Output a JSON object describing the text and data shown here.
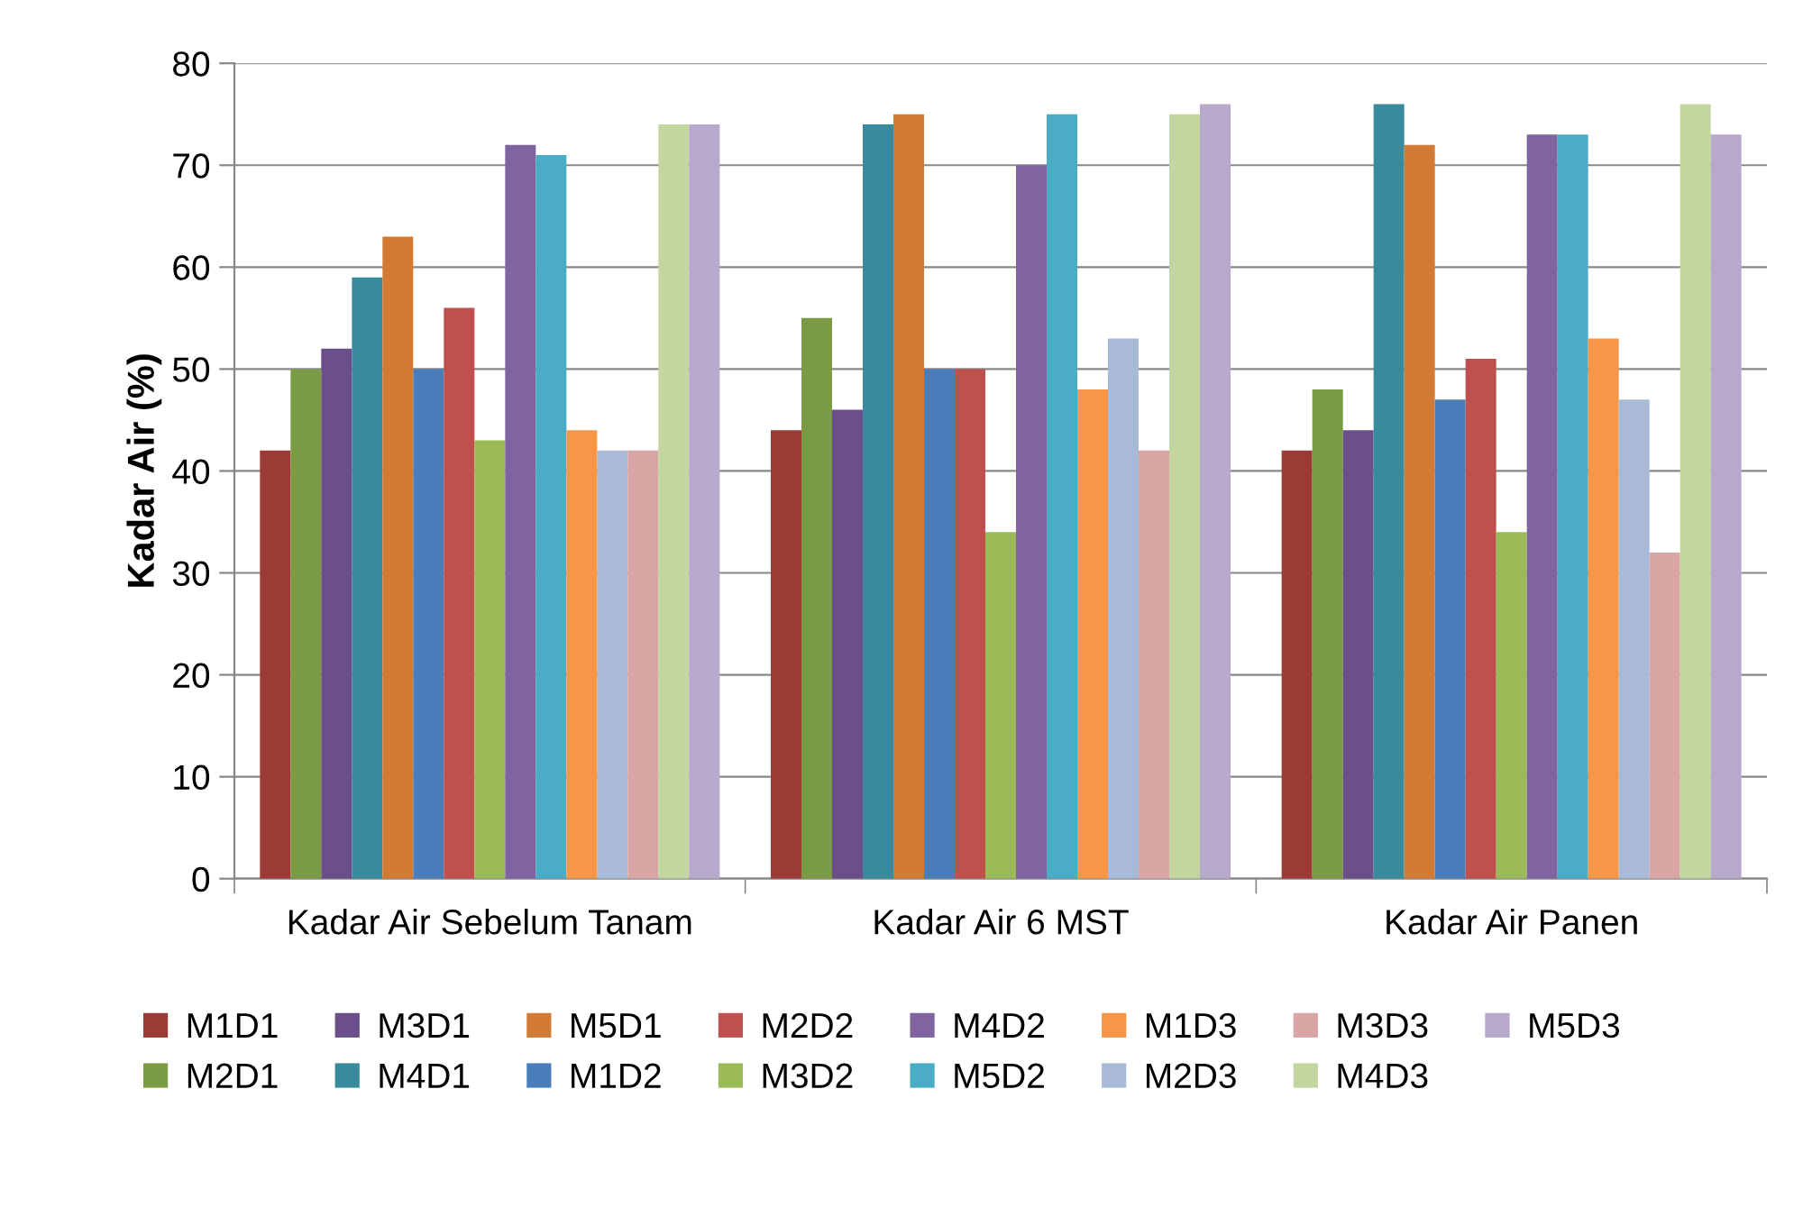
{
  "chart_data": {
    "type": "bar",
    "ylabel": "Kadar Air (%)",
    "categories": [
      "Kadar Air Sebelum Tanam",
      "Kadar Air 6 MST",
      "Kadar Air Panen"
    ],
    "ylim": [
      0,
      80
    ],
    "yticks": [
      0,
      10,
      20,
      30,
      40,
      50,
      60,
      70,
      80
    ],
    "grid": "y",
    "legend": "bottom",
    "series": [
      {
        "name": "M1D1",
        "color": "#9b3b36",
        "values": [
          42,
          44,
          42
        ]
      },
      {
        "name": "M2D1",
        "color": "#7b9a44",
        "values": [
          50,
          55,
          48
        ]
      },
      {
        "name": "M3D1",
        "color": "#6b4f8a",
        "values": [
          52,
          46,
          44
        ]
      },
      {
        "name": "M4D1",
        "color": "#3a8a9e",
        "values": [
          59,
          74,
          76
        ]
      },
      {
        "name": "M5D1",
        "color": "#d27b35",
        "values": [
          63,
          75,
          72
        ]
      },
      {
        "name": "M1D2",
        "color": "#4a7ebb",
        "values": [
          50,
          50,
          47
        ]
      },
      {
        "name": "M2D2",
        "color": "#c0504d",
        "values": [
          56,
          50,
          51
        ]
      },
      {
        "name": "M3D2",
        "color": "#9bbb59",
        "values": [
          43,
          34,
          34
        ]
      },
      {
        "name": "M4D2",
        "color": "#8064a2",
        "values": [
          72,
          70,
          73
        ]
      },
      {
        "name": "M5D2",
        "color": "#4bacc6",
        "values": [
          71,
          75,
          73
        ]
      },
      {
        "name": "M1D3",
        "color": "#f79646",
        "values": [
          44,
          48,
          53
        ]
      },
      {
        "name": "M2D3",
        "color": "#a9b9d8",
        "values": [
          42,
          53,
          47
        ]
      },
      {
        "name": "M3D3",
        "color": "#d9a5a5",
        "values": [
          42,
          42,
          32
        ]
      },
      {
        "name": "M4D3",
        "color": "#c4d6a0",
        "values": [
          74,
          75,
          76
        ]
      },
      {
        "name": "M5D3",
        "color": "#b7a9cc",
        "values": [
          74,
          76,
          73
        ]
      }
    ]
  }
}
